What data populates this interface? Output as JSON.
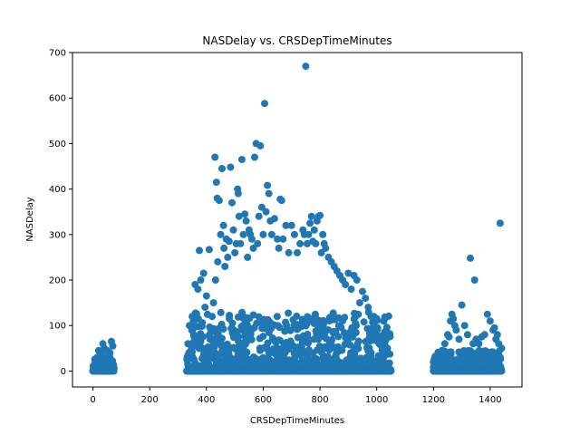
{
  "chart_data": {
    "type": "scatter",
    "title": "NASDelay vs. CRSDepTimeMinutes",
    "xlabel": "CRSDepTimeMinutes",
    "ylabel": "NASDelay",
    "xlim": [
      -72,
      1512
    ],
    "ylim": [
      -35,
      700
    ],
    "xticks": [
      0,
      200,
      400,
      600,
      800,
      1000,
      1200,
      1400
    ],
    "yticks": [
      0,
      100,
      200,
      300,
      400,
      500,
      600,
      700
    ],
    "grid": false,
    "legend": "none",
    "marker_color": "#1f77b4",
    "dense_regions": [
      {
        "x_range": [
          0,
          75
        ],
        "y_range": [
          0,
          30
        ]
      },
      {
        "x_range": [
          330,
          1050
        ],
        "y_range": [
          0,
          130
        ]
      },
      {
        "x_range": [
          1200,
          1440
        ],
        "y_range": [
          0,
          45
        ]
      }
    ],
    "points": [
      [
        0,
        0
      ],
      [
        5,
        10
      ],
      [
        10,
        20
      ],
      [
        15,
        30
      ],
      [
        20,
        45
      ],
      [
        25,
        35
      ],
      [
        30,
        40
      ],
      [
        35,
        60
      ],
      [
        40,
        50
      ],
      [
        45,
        30
      ],
      [
        50,
        45
      ],
      [
        55,
        25
      ],
      [
        60,
        40
      ],
      [
        65,
        65
      ],
      [
        70,
        55
      ],
      [
        72,
        0
      ],
      [
        30,
        15
      ],
      [
        45,
        15
      ],
      [
        60,
        20
      ],
      [
        335,
        60
      ],
      [
        340,
        100
      ],
      [
        350,
        120
      ],
      [
        355,
        80
      ],
      [
        360,
        190
      ],
      [
        370,
        180
      ],
      [
        375,
        265
      ],
      [
        380,
        200
      ],
      [
        390,
        215
      ],
      [
        395,
        140
      ],
      [
        400,
        165
      ],
      [
        410,
        267
      ],
      [
        420,
        120
      ],
      [
        425,
        150
      ],
      [
        430,
        470
      ],
      [
        432,
        200
      ],
      [
        435,
        415
      ],
      [
        438,
        380
      ],
      [
        440,
        240
      ],
      [
        445,
        375
      ],
      [
        450,
        300
      ],
      [
        455,
        445
      ],
      [
        460,
        320
      ],
      [
        462,
        270
      ],
      [
        465,
        230
      ],
      [
        470,
        290
      ],
      [
        475,
        250
      ],
      [
        480,
        285
      ],
      [
        485,
        448
      ],
      [
        490,
        370
      ],
      [
        495,
        310
      ],
      [
        500,
        260
      ],
      [
        505,
        280
      ],
      [
        510,
        400
      ],
      [
        512,
        390
      ],
      [
        515,
        340
      ],
      [
        520,
        280
      ],
      [
        525,
        465
      ],
      [
        530,
        300
      ],
      [
        535,
        345
      ],
      [
        540,
        330
      ],
      [
        545,
        250
      ],
      [
        550,
        310
      ],
      [
        555,
        300
      ],
      [
        560,
        290
      ],
      [
        565,
        270
      ],
      [
        570,
        470
      ],
      [
        575,
        500
      ],
      [
        580,
        280
      ],
      [
        585,
        340
      ],
      [
        590,
        495
      ],
      [
        595,
        360
      ],
      [
        600,
        300
      ],
      [
        605,
        588
      ],
      [
        610,
        350
      ],
      [
        615,
        408
      ],
      [
        620,
        390
      ],
      [
        625,
        330
      ],
      [
        630,
        300
      ],
      [
        640,
        335
      ],
      [
        650,
        290
      ],
      [
        655,
        270
      ],
      [
        660,
        378
      ],
      [
        665,
        375
      ],
      [
        670,
        290
      ],
      [
        680,
        320
      ],
      [
        690,
        260
      ],
      [
        700,
        320
      ],
      [
        710,
        300
      ],
      [
        720,
        260
      ],
      [
        730,
        280
      ],
      [
        740,
        310
      ],
      [
        745,
        300
      ],
      [
        750,
        670
      ],
      [
        755,
        280
      ],
      [
        760,
        300
      ],
      [
        765,
        325
      ],
      [
        770,
        340
      ],
      [
        775,
        285
      ],
      [
        780,
        310
      ],
      [
        785,
        280
      ],
      [
        790,
        330
      ],
      [
        795,
        340
      ],
      [
        800,
        342
      ],
      [
        805,
        260
      ],
      [
        810,
        300
      ],
      [
        815,
        280
      ],
      [
        820,
        270
      ],
      [
        830,
        250
      ],
      [
        840,
        240
      ],
      [
        850,
        230
      ],
      [
        860,
        220
      ],
      [
        870,
        210
      ],
      [
        880,
        200
      ],
      [
        890,
        190
      ],
      [
        900,
        215
      ],
      [
        910,
        180
      ],
      [
        920,
        210
      ],
      [
        930,
        200
      ],
      [
        940,
        150
      ],
      [
        950,
        175
      ],
      [
        960,
        160
      ],
      [
        970,
        140
      ],
      [
        980,
        120
      ],
      [
        990,
        100
      ],
      [
        1000,
        80
      ],
      [
        1010,
        60
      ],
      [
        1020,
        45
      ],
      [
        1030,
        35
      ],
      [
        1040,
        0
      ],
      [
        1050,
        0
      ],
      [
        1200,
        20
      ],
      [
        1210,
        15
      ],
      [
        1220,
        25
      ],
      [
        1230,
        45
      ],
      [
        1240,
        60
      ],
      [
        1250,
        80
      ],
      [
        1255,
        75
      ],
      [
        1260,
        110
      ],
      [
        1265,
        125
      ],
      [
        1270,
        115
      ],
      [
        1275,
        100
      ],
      [
        1280,
        90
      ],
      [
        1290,
        70
      ],
      [
        1300,
        145
      ],
      [
        1310,
        100
      ],
      [
        1320,
        80
      ],
      [
        1330,
        248
      ],
      [
        1340,
        60
      ],
      [
        1345,
        200
      ],
      [
        1350,
        70
      ],
      [
        1360,
        60
      ],
      [
        1370,
        75
      ],
      [
        1380,
        80
      ],
      [
        1390,
        125
      ],
      [
        1400,
        110
      ],
      [
        1410,
        90
      ],
      [
        1415,
        95
      ],
      [
        1420,
        70
      ],
      [
        1425,
        80
      ],
      [
        1430,
        60
      ],
      [
        1435,
        325
      ],
      [
        1440,
        50
      ]
    ]
  }
}
